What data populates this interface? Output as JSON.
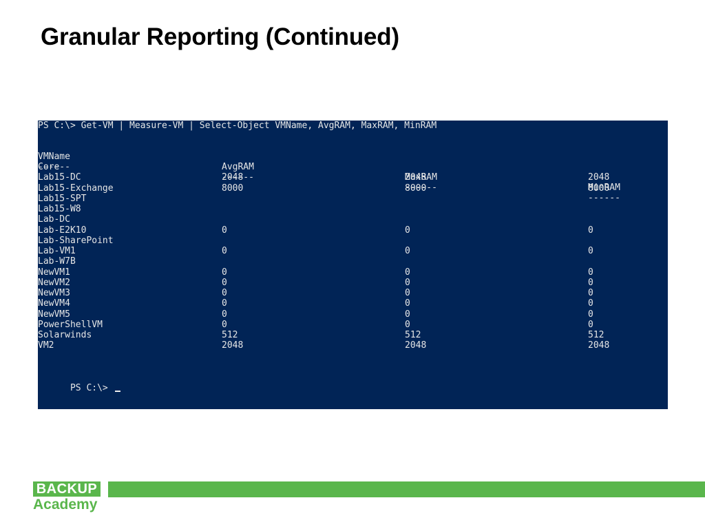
{
  "slide": {
    "title": "Granular Reporting (Continued)"
  },
  "console": {
    "background": "#012456",
    "command": "PS C:\\> Get-VM | Measure-VM | Select-Object VMName, AvgRAM, MaxRAM, MinRAM",
    "headers": [
      "VMName",
      "AvgRAM",
      "MaxRAM",
      "MinRAM"
    ],
    "separators": [
      "------",
      "------",
      "------",
      "------"
    ],
    "rows": [
      [
        "Core",
        "",
        "",
        ""
      ],
      [
        "Lab15-DC",
        "2048",
        "2048",
        "2048"
      ],
      [
        "Lab15-Exchange",
        "8000",
        "8000",
        "8000"
      ],
      [
        "Lab15-SPT",
        "",
        "",
        ""
      ],
      [
        "Lab15-W8",
        "",
        "",
        ""
      ],
      [
        "Lab-DC",
        "",
        "",
        ""
      ],
      [
        "Lab-E2K10",
        "0",
        "0",
        "0"
      ],
      [
        "Lab-SharePoint",
        "",
        "",
        ""
      ],
      [
        "Lab-VM1",
        "0",
        "0",
        "0"
      ],
      [
        "Lab-W7B",
        "",
        "",
        ""
      ],
      [
        "NewVM1",
        "0",
        "0",
        "0"
      ],
      [
        "NewVM2",
        "0",
        "0",
        "0"
      ],
      [
        "NewVM3",
        "0",
        "0",
        "0"
      ],
      [
        "NewVM4",
        "0",
        "0",
        "0"
      ],
      [
        "NewVM5",
        "0",
        "0",
        "0"
      ],
      [
        "PowerShellVM",
        "0",
        "0",
        "0"
      ],
      [
        "Solarwinds",
        "512",
        "512",
        "512"
      ],
      [
        "VM2",
        "2048",
        "2048",
        "2048"
      ]
    ],
    "prompt": "PS C:\\> "
  },
  "footer": {
    "logo_top": "BACKUP",
    "logo_bottom": "Academy",
    "accent_color": "#5ab64c"
  }
}
